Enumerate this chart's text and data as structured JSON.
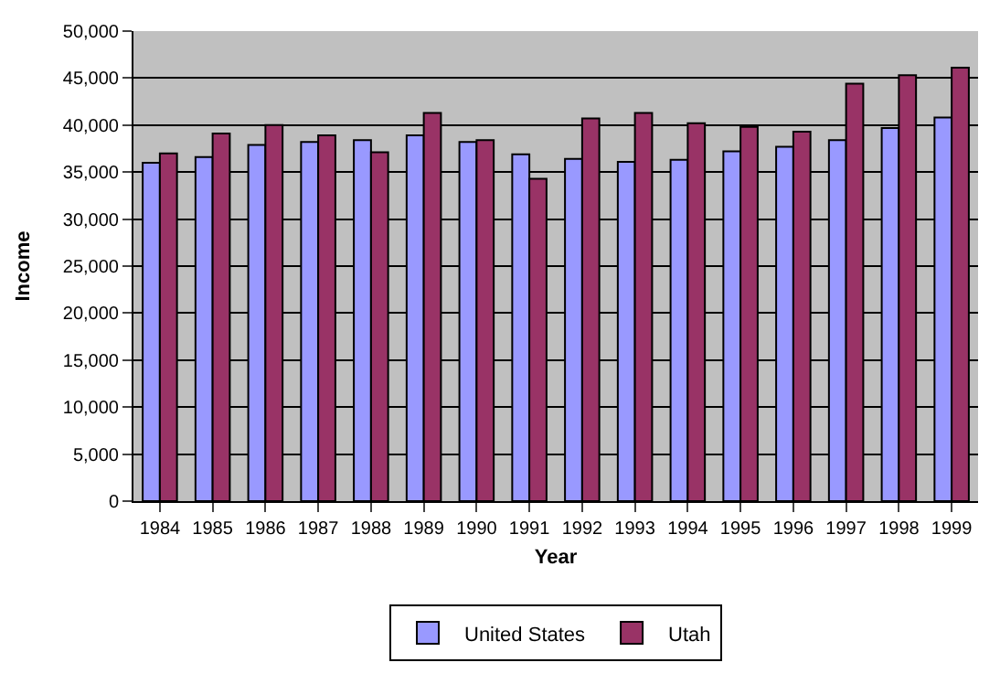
{
  "chart_data": {
    "type": "bar",
    "xlabel": "Year",
    "ylabel": "Income",
    "categories": [
      "1984",
      "1985",
      "1986",
      "1987",
      "1988",
      "1989",
      "1990",
      "1991",
      "1992",
      "1993",
      "1994",
      "1995",
      "1996",
      "1997",
      "1998",
      "1999"
    ],
    "series": [
      {
        "name": "United States",
        "color": "#9999ff",
        "values": [
          36000,
          36600,
          37900,
          38200,
          38400,
          38900,
          38200,
          36900,
          36400,
          36100,
          36300,
          37200,
          37700,
          38400,
          39700,
          40800
        ]
      },
      {
        "name": "Utah",
        "color": "#993366",
        "values": [
          37000,
          39100,
          40000,
          38900,
          37100,
          41300,
          38400,
          34300,
          40700,
          41300,
          40200,
          39800,
          39300,
          44400,
          45300,
          46100
        ]
      }
    ],
    "ylim": [
      0,
      50000
    ],
    "yticks": [
      {
        "value": 0,
        "label": "0"
      },
      {
        "value": 5000,
        "label": "5,000"
      },
      {
        "value": 10000,
        "label": "10,000"
      },
      {
        "value": 15000,
        "label": "15,000"
      },
      {
        "value": 20000,
        "label": "20,000"
      },
      {
        "value": 25000,
        "label": "25,000"
      },
      {
        "value": 30000,
        "label": "30,000"
      },
      {
        "value": 35000,
        "label": "35,000"
      },
      {
        "value": 40000,
        "label": "40,000"
      },
      {
        "value": 45000,
        "label": "45,000"
      },
      {
        "value": 50000,
        "label": "50,000"
      }
    ],
    "grid": "y",
    "legend": "bottom"
  }
}
